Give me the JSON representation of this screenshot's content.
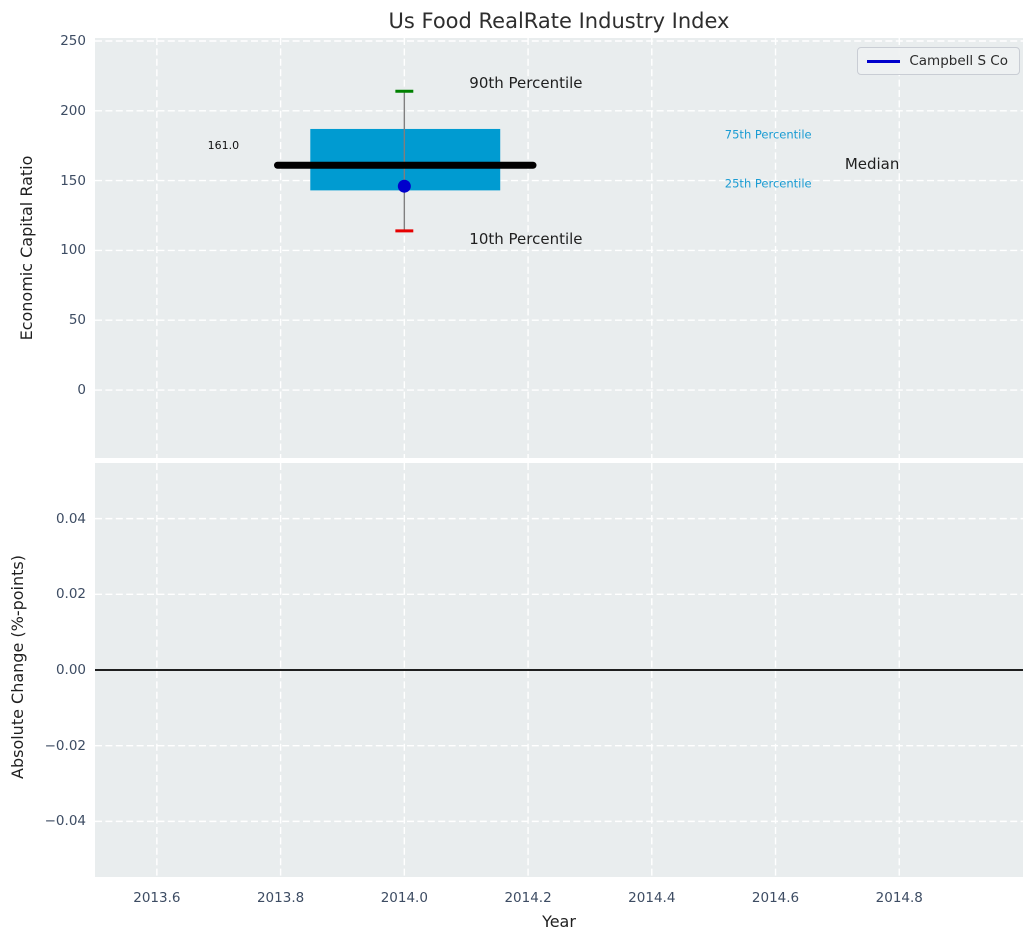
{
  "colors": {
    "title_text": "#2e2e2e",
    "plot_bg": "#e9edee",
    "grid": "#ffffff",
    "tick_label": "#3d4c63",
    "axis_label": "#1f1f1f",
    "box_fill": "#009bd1",
    "median_line": "#000000",
    "whisker": "#7f7f7f",
    "cap_90": "#008000",
    "cap_10": "#e60000",
    "marker": "#0000cc",
    "legend_line": "#0000cc",
    "legend_text": "#2b2b2b",
    "zero_line": "#000000",
    "annotation_dark": "#1f1f1f",
    "annotation_cyan": "#1a9cd3"
  },
  "chart_data": [
    {
      "type": "boxplot",
      "title": "Us Food RealRate Industry Index",
      "ylabel": "Economic Capital Ratio",
      "xlim": [
        2013.5,
        2015.0
      ],
      "ylim": [
        -48.7,
        252.15
      ],
      "xtick_values": [
        2013.6,
        2013.8,
        2014.0,
        2014.2,
        2014.4,
        2014.6,
        2014.8
      ],
      "xtick_labels": [
        "2013.6",
        "2013.8",
        "2014.0",
        "2014.2",
        "2014.4",
        "2014.6",
        "2014.8"
      ],
      "ytick_values": [
        0,
        50,
        100,
        150,
        200,
        250
      ],
      "ytick_labels": [
        "0",
        "50",
        "100",
        "150",
        "200",
        "250"
      ],
      "legend": {
        "label": "Campbell S Co",
        "position": "upper right"
      },
      "grid": "white dashed on",
      "box": {
        "x_center": 2014.0,
        "p10": 114,
        "p25": 143,
        "median": 161.0,
        "p75": 187,
        "p90": 214,
        "box_x_start": 2013.848,
        "box_x_end": 2014.155,
        "median_x_start": 2013.795,
        "median_x_end": 2014.208,
        "cap_half_width": 0.0145
      },
      "company_point": {
        "name": "Campbell S Co",
        "x": 2014.0,
        "y": 146
      },
      "annotations": [
        {
          "name": "p90-label",
          "text": "90th Percentile",
          "x": 2014.105,
          "y": 220,
          "color": "#1f1f1f",
          "size": 15
        },
        {
          "name": "p10-label",
          "text": "10th Percentile",
          "x": 2014.105,
          "y": 108,
          "color": "#1f1f1f",
          "size": 15
        },
        {
          "name": "p75-label",
          "text": "75th Percentile",
          "x": 2014.518,
          "y": 183,
          "color": "#1a9cd3",
          "size": 11.5
        },
        {
          "name": "p25-label",
          "text": "25th Percentile",
          "x": 2014.518,
          "y": 148,
          "color": "#1a9cd3",
          "size": 11.5
        },
        {
          "name": "median-label",
          "text": "Median",
          "x": 2014.712,
          "y": 162,
          "color": "#1f1f1f",
          "size": 15
        },
        {
          "name": "median-value-label",
          "text": "161.0",
          "x": 2013.682,
          "y": 175,
          "color": "#111111",
          "size": 11
        }
      ]
    },
    {
      "type": "line",
      "ylabel": "Absolute Change (%-points)",
      "xlabel": "Year",
      "xlim": [
        2013.5,
        2015.0
      ],
      "ylim": [
        -0.0547,
        0.0547
      ],
      "xtick_values": [
        2013.6,
        2013.8,
        2014.0,
        2014.2,
        2014.4,
        2014.6,
        2014.8
      ],
      "xtick_labels": [
        "2013.6",
        "2013.8",
        "2014.0",
        "2014.2",
        "2014.4",
        "2014.6",
        "2014.8"
      ],
      "ytick_values": [
        -0.04,
        -0.02,
        0.0,
        0.02,
        0.04
      ],
      "ytick_labels": [
        "−0.04",
        "−0.02",
        "0.00",
        "0.02",
        "0.04"
      ],
      "zero_line_y": 0.0,
      "series": [
        {
          "name": "Campbell S Co",
          "x": [],
          "y": []
        }
      ]
    }
  ]
}
